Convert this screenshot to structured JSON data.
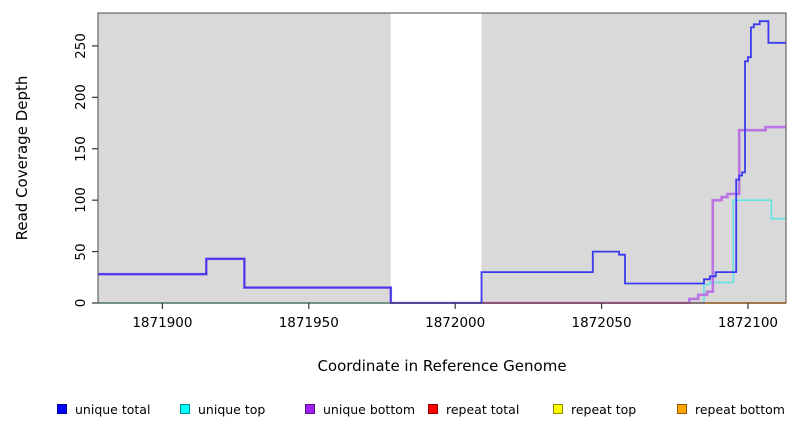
{
  "chart_data": {
    "type": "line",
    "subtype": "step-after",
    "title": "",
    "xlabel": "Coordinate in Reference Genome",
    "ylabel": "Read Coverage Depth",
    "xlim": [
      1871878,
      1872113
    ],
    "ylim": [
      0,
      282
    ],
    "x_ticks": [
      1871900,
      1871950,
      1872000,
      1872050,
      1872100
    ],
    "y_ticks": [
      0,
      50,
      100,
      150,
      200,
      250
    ],
    "grid": false,
    "legend_position": "bottom",
    "plot_background": "#d9d9d9",
    "box_color": "#4a4a4a",
    "masked_region": {
      "from": 1871978,
      "to": 1872009,
      "color": "#ffffff"
    },
    "series": [
      {
        "name": "unique total",
        "color": "#0000ff",
        "line_color": "#3a3aef",
        "line_width": 1.8,
        "points": [
          [
            1871878,
            28
          ],
          [
            1871915,
            43
          ],
          [
            1871928,
            15
          ],
          [
            1871978,
            0
          ],
          [
            1872009,
            30
          ],
          [
            1872047,
            50
          ],
          [
            1872056,
            47
          ],
          [
            1872058,
            19
          ],
          [
            1872085,
            23
          ],
          [
            1872087,
            26
          ],
          [
            1872089,
            30
          ],
          [
            1872096,
            120
          ],
          [
            1872097,
            124
          ],
          [
            1872098,
            127
          ],
          [
            1872099,
            235
          ],
          [
            1872100,
            239
          ],
          [
            1872101,
            268
          ],
          [
            1872102,
            271
          ],
          [
            1872104,
            274
          ],
          [
            1872107,
            253
          ],
          [
            1872113,
            253
          ]
        ]
      },
      {
        "name": "unique top",
        "color": "#00ffff",
        "line_color": "#63e4e4",
        "line_width": 1.6,
        "points": [
          [
            1871878,
            0
          ],
          [
            1872085,
            18
          ],
          [
            1872087,
            20
          ],
          [
            1872095,
            100
          ],
          [
            1872108,
            82
          ],
          [
            1872113,
            82
          ]
        ]
      },
      {
        "name": "unique bottom",
        "color": "#a020f0",
        "line_color": "#bb74e4",
        "line_width": 2.6,
        "points": [
          [
            1871878,
            28
          ],
          [
            1871915,
            43
          ],
          [
            1871928,
            15
          ],
          [
            1871978,
            0
          ],
          [
            1872080,
            4
          ],
          [
            1872083,
            8
          ],
          [
            1872086,
            11
          ],
          [
            1872088,
            100
          ],
          [
            1872091,
            103
          ],
          [
            1872093,
            106
          ],
          [
            1872097,
            168
          ],
          [
            1872106,
            171
          ],
          [
            1872113,
            171
          ]
        ]
      },
      {
        "name": "repeat total",
        "color": "#ff0000",
        "line_color": "#d9536f",
        "line_width": 1.4,
        "points": [
          [
            1871878,
            0
          ],
          [
            1872113,
            0
          ]
        ]
      },
      {
        "name": "repeat top",
        "color": "#ffff00",
        "line_color": "#ffff00",
        "line_width": 1.4,
        "points": [
          [
            1871878,
            0
          ],
          [
            1872113,
            0
          ]
        ]
      },
      {
        "name": "repeat bottom",
        "color": "#ffa500",
        "line_color": "#ff9015",
        "line_width": 1.8,
        "points": [
          [
            1871878,
            0
          ],
          [
            1872113,
            0
          ]
        ]
      }
    ],
    "baseline_segments": [
      {
        "from": 1871878,
        "to": 1871978,
        "color": "#90cf90",
        "width": 1.6
      },
      {
        "from": 1872009,
        "to": 1872085,
        "color": "#d9536f",
        "width": 1.4
      },
      {
        "from": 1872085,
        "to": 1872113,
        "color": "#ff9015",
        "width": 1.8
      }
    ],
    "draw_order": [
      "unique top",
      "unique bottom",
      "baseline",
      "unique total"
    ]
  }
}
